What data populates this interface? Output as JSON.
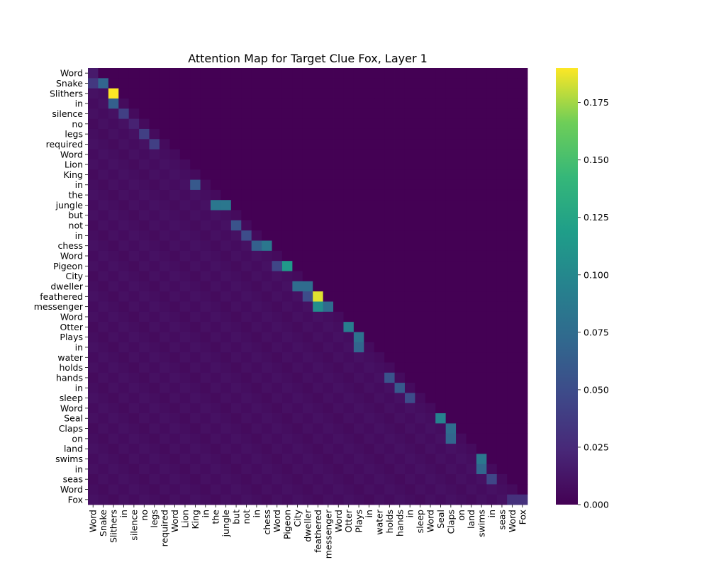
{
  "chart_data": {
    "type": "heatmap",
    "title": "Attention Map for Target Clue Fox, Layer 1",
    "tokens": [
      "Word",
      "Snake",
      "Slithers",
      "in",
      "silence",
      "no",
      "legs",
      "required",
      "Word",
      "Lion",
      "King",
      "in",
      "the",
      "jungle",
      "but",
      "not",
      "in",
      "chess",
      "Word",
      "Pigeon",
      "City",
      "dweller",
      "feathered",
      "messenger",
      "Word",
      "Otter",
      "Plays",
      "in",
      "water",
      "holds",
      "hands",
      "in",
      "sleep",
      "Word",
      "Seal",
      "Claps",
      "on",
      "land",
      "swims",
      "in",
      "seas",
      "Word",
      "Fox"
    ],
    "mask": "upper triangle above diagonal masked (value 0)",
    "notable_values": [
      {
        "row": "Word",
        "col": "Word",
        "value": 0.015
      },
      {
        "row": "Snake",
        "col": "Word",
        "value": 0.035
      },
      {
        "row": "Snake",
        "col": "Snake",
        "value": 0.07
      },
      {
        "row": "Slithers",
        "col": "Slithers",
        "value": 0.19
      },
      {
        "row": "in",
        "col": "Slithers",
        "value": 0.065
      },
      {
        "row": "silence",
        "col": "in",
        "value": 0.04
      },
      {
        "row": "no",
        "col": "silence",
        "value": 0.02
      },
      {
        "row": "legs",
        "col": "no",
        "value": 0.04
      },
      {
        "row": "required",
        "col": "legs",
        "value": 0.04
      },
      {
        "row": "in (11)",
        "col": "King",
        "value": 0.06
      },
      {
        "row": "jungle",
        "col": "the",
        "value": 0.085
      },
      {
        "row": "jungle",
        "col": "jungle",
        "value": 0.085
      },
      {
        "row": "not",
        "col": "but",
        "value": 0.055
      },
      {
        "row": "in (16)",
        "col": "not",
        "value": 0.05
      },
      {
        "row": "chess",
        "col": "in",
        "value": 0.065
      },
      {
        "row": "chess",
        "col": "chess",
        "value": 0.085
      },
      {
        "row": "Pigeon",
        "col": "Word",
        "value": 0.045
      },
      {
        "row": "Pigeon",
        "col": "Pigeon",
        "value": 0.115
      },
      {
        "row": "dweller",
        "col": "City",
        "value": 0.075
      },
      {
        "row": "dweller",
        "col": "dweller",
        "value": 0.075
      },
      {
        "row": "feathered",
        "col": "dweller",
        "value": 0.05
      },
      {
        "row": "feathered",
        "col": "feathered",
        "value": 0.185
      },
      {
        "row": "messenger",
        "col": "feathered",
        "value": 0.105
      },
      {
        "row": "messenger",
        "col": "messenger",
        "value": 0.075
      },
      {
        "row": "Otter",
        "col": "Otter",
        "value": 0.09
      },
      {
        "row": "Plays",
        "col": "Plays",
        "value": 0.08
      },
      {
        "row": "in (27)",
        "col": "Plays",
        "value": 0.07
      },
      {
        "row": "hands",
        "col": "holds",
        "value": 0.055
      },
      {
        "row": "in (31)",
        "col": "hands",
        "value": 0.06
      },
      {
        "row": "sleep",
        "col": "in",
        "value": 0.05
      },
      {
        "row": "Seal",
        "col": "Seal",
        "value": 0.095
      },
      {
        "row": "Claps",
        "col": "Claps",
        "value": 0.075
      },
      {
        "row": "on",
        "col": "Claps",
        "value": 0.07
      },
      {
        "row": "swims",
        "col": "swims",
        "value": 0.085
      },
      {
        "row": "in (39)",
        "col": "swims",
        "value": 0.07
      },
      {
        "row": "seas",
        "col": "in",
        "value": 0.045
      },
      {
        "row": "Fox",
        "col": "Word",
        "value": 0.03
      },
      {
        "row": "Fox",
        "col": "Fox",
        "value": 0.03
      }
    ],
    "colorbar": {
      "colormap": "viridis",
      "min": 0.0,
      "max": 0.19,
      "ticks": [
        "0.000",
        "0.025",
        "0.050",
        "0.075",
        "0.100",
        "0.125",
        "0.150",
        "0.175"
      ]
    }
  }
}
